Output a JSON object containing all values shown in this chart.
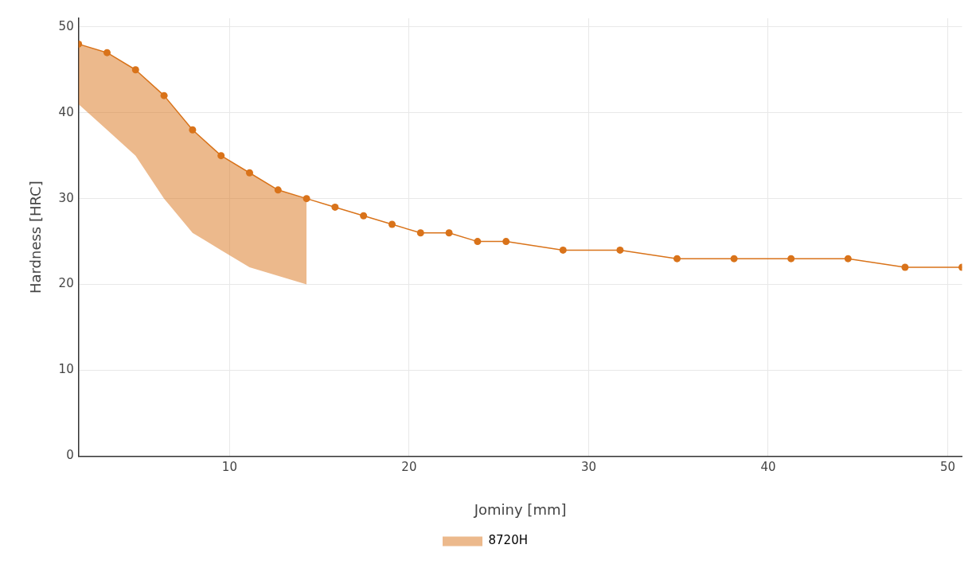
{
  "chart_data": {
    "type": "line",
    "xlabel": "Jominy [mm]",
    "ylabel": "Hardness [HRC]",
    "x": [
      1.5875,
      3.175,
      4.7625,
      6.35,
      7.9375,
      9.525,
      11.1125,
      12.7,
      14.2875,
      15.875,
      17.4625,
      19.05,
      20.6375,
      22.225,
      23.8125,
      25.4,
      28.575,
      31.75,
      34.925,
      38.1,
      41.275,
      44.45,
      47.625,
      50.8
    ],
    "series": [
      {
        "name": "8720H",
        "color": "#d9731a",
        "values": [
          48,
          47,
          45,
          42,
          38,
          35,
          33,
          31,
          30,
          29,
          28,
          27,
          26,
          26,
          25,
          25,
          24,
          24,
          23,
          23,
          23,
          23,
          22,
          22
        ],
        "lower": [
          41,
          38,
          35,
          30,
          26,
          24,
          22,
          21,
          20,
          null,
          null,
          null,
          null,
          null,
          null,
          null,
          null,
          null,
          null,
          null,
          null,
          null,
          null,
          null
        ],
        "upper": [
          48,
          47,
          45,
          42,
          38,
          35,
          33,
          31,
          30,
          null,
          null,
          null,
          null,
          null,
          null,
          null,
          null,
          null,
          null,
          null,
          null,
          null,
          null,
          null
        ]
      }
    ],
    "xlim": [
      1.5875,
      50.8
    ],
    "xticks": [
      10,
      20,
      30,
      40,
      50
    ],
    "ylim": [
      0,
      51
    ],
    "yticks": [
      0,
      10,
      20,
      30,
      40,
      50
    ],
    "grid": true,
    "legend": "bottom",
    "marker": "circle",
    "line_style": "solid"
  }
}
